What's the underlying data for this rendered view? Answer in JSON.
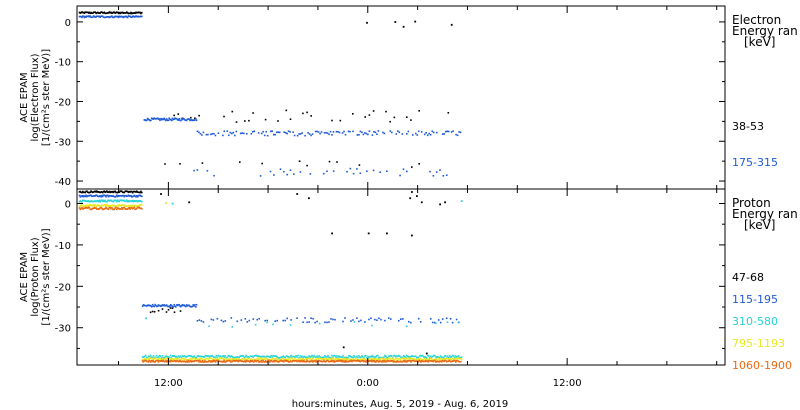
{
  "x_axis": {
    "label": "hours:minutes, Aug.  5, 2019 - Aug.  6, 2019",
    "ticks": [
      {
        "hour": 12,
        "label": "12:00"
      },
      {
        "hour": 24,
        "label": "0:00"
      },
      {
        "hour": 36,
        "label": "12:00"
      }
    ],
    "range_hours": [
      6.5,
      45.5
    ]
  },
  "chart_data": [
    {
      "type": "scatter",
      "panel": "electron",
      "ylabel": [
        "ACE EPAM",
        "log(Electron Flux)",
        "[1/(cm²s ster MeV)]"
      ],
      "yticks": [
        0,
        -10,
        -20,
        -30,
        -40
      ],
      "ylim": [
        -42,
        4
      ],
      "legend_title": [
        "Electron",
        "Energy ran",
        "[keV]"
      ],
      "series": [
        {
          "name": "38-53",
          "color": "#000000",
          "segments": [
            {
              "x0": 6.6,
              "x1": 10.4,
              "y": 2.5,
              "step": 0.05,
              "jitter": 0.2
            },
            {
              "x0": 10.4,
              "x1": 29.5,
              "y": -35.5,
              "step": 0.45,
              "jitter": 0.8,
              "prob": 0.35
            },
            {
              "x0": 11.8,
              "x1": 28.8,
              "y": -23.5,
              "step": 0.25,
              "jitter": 1.5,
              "prob": 0.45
            }
          ],
          "points": [
            [
              23.9,
              0
            ],
            [
              25.6,
              0.2
            ],
            [
              26.1,
              -1
            ],
            [
              26.8,
              0.3
            ],
            [
              29.0,
              -0.5
            ]
          ]
        },
        {
          "name": "175-315",
          "color": "#1f5bd8",
          "segments": [
            {
              "x0": 6.6,
              "x1": 10.4,
              "y": 1.5,
              "step": 0.05,
              "jitter": 0.2
            },
            {
              "x0": 10.5,
              "x1": 13.7,
              "y": -24.3,
              "step": 0.05,
              "jitter": 0.3
            },
            {
              "x0": 13.7,
              "x1": 29.6,
              "y": -27.8,
              "step": 0.09,
              "jitter": 0.6,
              "prob": 0.7
            },
            {
              "x0": 13.5,
              "x1": 29.5,
              "y": -37.5,
              "step": 0.2,
              "jitter": 1.0,
              "prob": 0.4
            }
          ],
          "points": []
        }
      ]
    },
    {
      "type": "scatter",
      "panel": "proton",
      "ylabel": [
        "ACE EPAM",
        "log(Proton Flux)",
        "[1/(cm²s ster MeV)]"
      ],
      "yticks": [
        0,
        -10,
        -20,
        -30
      ],
      "ylim": [
        -39,
        3.5
      ],
      "legend_title": [
        "Proton",
        "Energy ran",
        "[keV]"
      ],
      "series": [
        {
          "name": "47-68",
          "color": "#000000",
          "segments": [
            {
              "x0": 6.6,
              "x1": 10.4,
              "y": 3.0,
              "step": 0.05,
              "jitter": 0.2
            },
            {
              "x0": 10.4,
              "x1": 13.7,
              "y": -25.5,
              "step": 0.12,
              "jitter": 0.6,
              "prob": 0.5
            }
          ],
          "points": [
            [
              11.5,
              2.5
            ],
            [
              13.2,
              0.5
            ],
            [
              19.7,
              2.5
            ],
            [
              20.4,
              1.5
            ],
            [
              26.6,
              3
            ],
            [
              26.9,
              2
            ],
            [
              26.6,
              -7.5
            ],
            [
              21.8,
              -7
            ],
            [
              24.0,
              -7
            ],
            [
              25.1,
              -7
            ],
            [
              26.5,
              1.5
            ],
            [
              27.2,
              0.5
            ],
            [
              28.3,
              0
            ],
            [
              28.6,
              0.5
            ],
            [
              22.5,
              -34.5
            ],
            [
              27.5,
              -36
            ]
          ]
        },
        {
          "name": "115-195",
          "color": "#1f5bd8",
          "segments": [
            {
              "x0": 6.6,
              "x1": 10.4,
              "y": 2.0,
              "step": 0.05,
              "jitter": 0.2
            },
            {
              "x0": 10.4,
              "x1": 13.7,
              "y": -24.5,
              "step": 0.05,
              "jitter": 0.3
            },
            {
              "x0": 13.7,
              "x1": 29.6,
              "y": -28.0,
              "step": 0.12,
              "jitter": 0.6,
              "prob": 0.55
            }
          ],
          "points": []
        },
        {
          "name": "310-580",
          "color": "#27d3d6",
          "segments": [
            {
              "x0": 6.6,
              "x1": 10.4,
              "y": 0.8,
              "step": 0.05,
              "jitter": 0.2
            },
            {
              "x0": 10.4,
              "x1": 29.6,
              "y": -36.8,
              "step": 0.06,
              "jitter": 0.3
            },
            {
              "x0": 13.7,
              "x1": 29.6,
              "y": -29.0,
              "step": 0.35,
              "jitter": 0.6,
              "prob": 0.3
            }
          ],
          "points": [
            [
              10.6,
              -27.5
            ],
            [
              12.2,
              0.2
            ],
            [
              29.6,
              0.8
            ]
          ]
        },
        {
          "name": "795-1193",
          "color": "#e8e81e",
          "segments": [
            {
              "x0": 6.6,
              "x1": 10.4,
              "y": -0.3,
              "step": 0.05,
              "jitter": 0.2
            },
            {
              "x0": 10.4,
              "x1": 29.6,
              "y": -37.4,
              "step": 0.06,
              "jitter": 0.25
            }
          ],
          "points": [
            [
              11.8,
              0.3
            ]
          ]
        },
        {
          "name": "1060-1900",
          "color": "#e86a12",
          "segments": [
            {
              "x0": 6.6,
              "x1": 10.4,
              "y": -1.0,
              "step": 0.05,
              "jitter": 0.25
            },
            {
              "x0": 10.4,
              "x1": 29.6,
              "y": -37.9,
              "step": 0.05,
              "jitter": 0.2
            }
          ],
          "points": []
        }
      ]
    }
  ]
}
